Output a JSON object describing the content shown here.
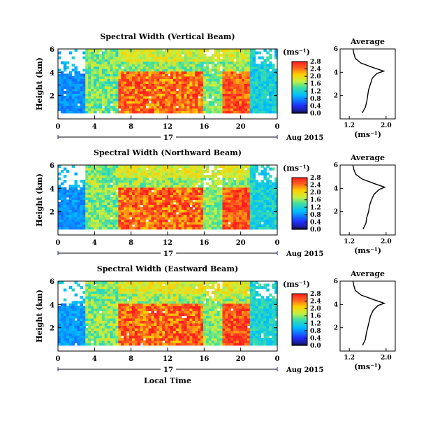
{
  "figure": {
    "date_label": "Aug 2015",
    "day_label": "17",
    "xlabel": "Local Time",
    "units_label": "(ms⁻¹)"
  },
  "chart_data": [
    {
      "type": "heatmap",
      "title": "Spectral Width (Vertical Beam)",
      "ylabel": "Height (km)",
      "x_ticks": [
        "0",
        "4",
        "8",
        "12",
        "16",
        "20",
        "0"
      ],
      "y_ticks": [
        "6",
        "4",
        "2"
      ],
      "ylim": [
        0,
        6
      ],
      "xlim": [
        0,
        24
      ],
      "colorbar": {
        "ticks": [
          "2.8",
          "2.4",
          "2.0",
          "1.6",
          "1.2",
          "0.8",
          "0.4",
          "0.0"
        ],
        "range": [
          0.0,
          2.8
        ]
      },
      "average_profile": {
        "title": "Average",
        "xlabel": "(ms⁻¹)",
        "x_ticks": [
          "1.2",
          "2.0"
        ],
        "y_ticks": [
          "6",
          "4",
          "2"
        ],
        "height_km": [
          0.5,
          1.0,
          1.5,
          2.0,
          2.5,
          3.0,
          3.5,
          3.9,
          4.1,
          4.4,
          4.8,
          5.2,
          5.6,
          6.0
        ],
        "width": [
          1.48,
          1.55,
          1.58,
          1.6,
          1.62,
          1.66,
          1.7,
          1.8,
          1.95,
          1.72,
          1.45,
          1.33,
          1.3,
          1.28
        ]
      }
    },
    {
      "type": "heatmap",
      "title": "Spectral Width (Northward Beam)",
      "ylabel": "Height (km)",
      "x_ticks": [
        "0",
        "4",
        "8",
        "12",
        "16",
        "20",
        "0"
      ],
      "y_ticks": [
        "6",
        "4",
        "2"
      ],
      "ylim": [
        0,
        6
      ],
      "xlim": [
        0,
        24
      ],
      "colorbar": {
        "ticks": [
          "2.8",
          "2.4",
          "2.0",
          "1.6",
          "1.2",
          "0.8",
          "0.4",
          "0.0"
        ],
        "range": [
          0.0,
          2.8
        ]
      },
      "average_profile": {
        "title": "Average",
        "xlabel": "(ms⁻¹)",
        "x_ticks": [
          "1.2",
          "2.0"
        ],
        "y_ticks": [
          "6",
          "4",
          "2"
        ],
        "height_km": [
          0.5,
          1.0,
          1.5,
          2.0,
          2.5,
          3.0,
          3.5,
          3.9,
          4.1,
          4.4,
          4.8,
          5.2,
          5.6,
          6.0
        ],
        "width": [
          1.5,
          1.56,
          1.58,
          1.62,
          1.64,
          1.68,
          1.74,
          1.85,
          1.97,
          1.75,
          1.48,
          1.34,
          1.3,
          1.28
        ]
      }
    },
    {
      "type": "heatmap",
      "title": "Spectral Width (Eastward Beam)",
      "ylabel": "Height (km)",
      "x_ticks": [
        "0",
        "4",
        "8",
        "12",
        "16",
        "20",
        "0"
      ],
      "y_ticks": [
        "6",
        "4",
        "2"
      ],
      "ylim": [
        0,
        6
      ],
      "xlim": [
        0,
        24
      ],
      "colorbar": {
        "ticks": [
          "2.8",
          "2.4",
          "2.0",
          "1.6",
          "1.2",
          "0.8",
          "0.4",
          "0.0"
        ],
        "range": [
          0.0,
          2.8
        ]
      },
      "average_profile": {
        "title": "Average",
        "xlabel": "(ms⁻¹)",
        "x_ticks": [
          "1.2",
          "2.0"
        ],
        "y_ticks": [
          "6",
          "4",
          "2"
        ],
        "height_km": [
          0.5,
          1.0,
          1.5,
          2.0,
          2.5,
          3.0,
          3.5,
          3.9,
          4.1,
          4.4,
          4.8,
          5.2,
          5.6,
          6.0
        ],
        "width": [
          1.49,
          1.55,
          1.57,
          1.6,
          1.63,
          1.66,
          1.72,
          1.82,
          1.96,
          1.74,
          1.46,
          1.33,
          1.3,
          1.28
        ]
      }
    }
  ]
}
